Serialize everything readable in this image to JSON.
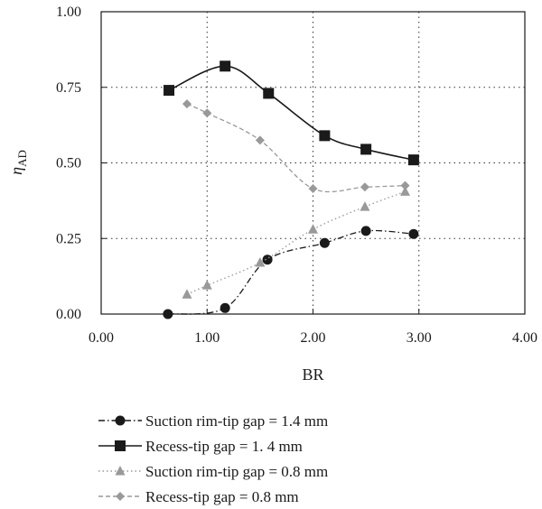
{
  "chart_data": {
    "type": "line",
    "xlabel": "BR",
    "ylabel": "η",
    "ylabel_sub": "AD",
    "xlim": [
      0,
      4
    ],
    "ylim": [
      0,
      1
    ],
    "x_ticks": [
      "0.00",
      "1.00",
      "2.00",
      "3.00",
      "4.00"
    ],
    "y_ticks": [
      "0.00",
      "0.25",
      "0.50",
      "0.75",
      "1.00"
    ],
    "grid": "dotted horizontal and vertical",
    "legend_position": "bottom",
    "series": [
      {
        "name": "Suction rim-tip gap = 1.4 mm",
        "marker": "circle",
        "line": "dash-dot",
        "color": "#1a1a1a",
        "x": [
          0.63,
          1.17,
          1.57,
          2.11,
          2.5,
          2.95
        ],
        "y": [
          0.0,
          0.02,
          0.18,
          0.235,
          0.275,
          0.265
        ]
      },
      {
        "name": "Recess-tip gap = 1. 4 mm",
        "marker": "square",
        "line": "solid",
        "color": "#1a1a1a",
        "x": [
          0.64,
          1.17,
          1.58,
          2.11,
          2.5,
          2.95
        ],
        "y": [
          0.74,
          0.82,
          0.73,
          0.59,
          0.545,
          0.51
        ]
      },
      {
        "name": "Suction rim-tip gap = 0.8 mm",
        "marker": "triangle",
        "line": "dotted",
        "color": "#999999",
        "x": [
          0.81,
          1.0,
          1.5,
          2.0,
          2.49,
          2.87
        ],
        "y": [
          0.065,
          0.095,
          0.17,
          0.28,
          0.355,
          0.405
        ]
      },
      {
        "name": "Recess-tip gap = 0.8 mm",
        "marker": "diamond",
        "line": "dashed",
        "color": "#999999",
        "x": [
          0.81,
          1.0,
          1.5,
          2.0,
          2.49,
          2.87
        ],
        "y": [
          0.695,
          0.665,
          0.575,
          0.415,
          0.42,
          0.425
        ]
      }
    ]
  }
}
